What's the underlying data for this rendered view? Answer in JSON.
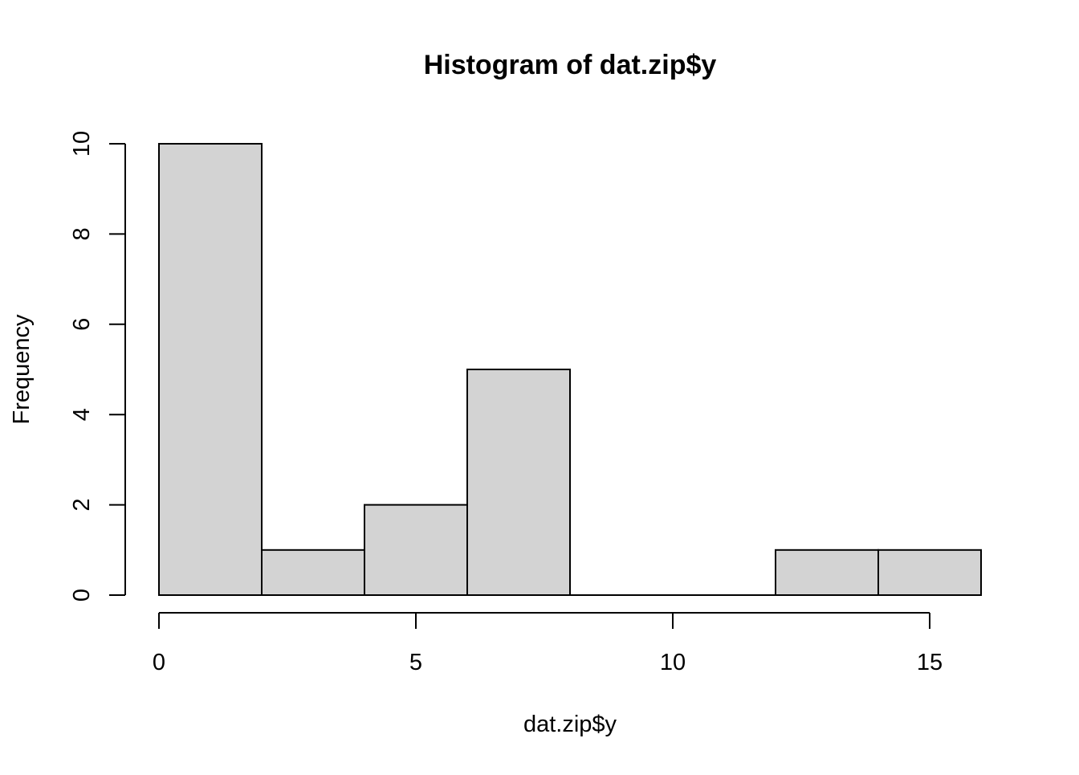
{
  "chart_data": {
    "type": "bar",
    "subtype": "histogram",
    "title": "Histogram of dat.zip$y",
    "xlabel": "dat.zip$y",
    "ylabel": "Frequency",
    "bins": [
      {
        "start": 0,
        "end": 2,
        "count": 10
      },
      {
        "start": 2,
        "end": 4,
        "count": 1
      },
      {
        "start": 4,
        "end": 6,
        "count": 2
      },
      {
        "start": 6,
        "end": 8,
        "count": 5
      },
      {
        "start": 8,
        "end": 10,
        "count": 0
      },
      {
        "start": 10,
        "end": 12,
        "count": 0
      },
      {
        "start": 12,
        "end": 14,
        "count": 1
      },
      {
        "start": 14,
        "end": 16,
        "count": 1
      }
    ],
    "x_ticks": [
      0,
      5,
      10,
      15
    ],
    "y_ticks": [
      0,
      2,
      4,
      6,
      8,
      10
    ],
    "x_tick_labels": [
      "0",
      "5",
      "10",
      "15"
    ],
    "y_tick_labels": [
      "0",
      "2",
      "4",
      "6",
      "8",
      "10"
    ],
    "xlim": [
      0,
      16
    ],
    "ylim": [
      0,
      10
    ],
    "grid": false,
    "legend": "none",
    "colors": {
      "bar_fill": "#d3d3d3",
      "bar_stroke": "#000000",
      "axis": "#000000",
      "background": "#ffffff"
    }
  }
}
